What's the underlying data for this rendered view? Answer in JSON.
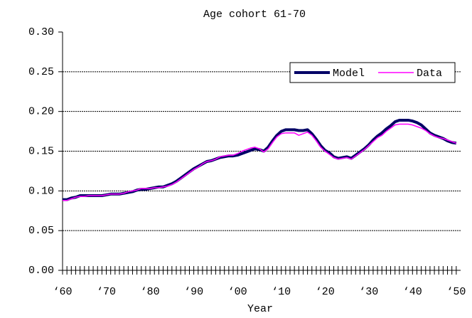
{
  "chart_data": {
    "type": "line",
    "title": "Age cohort 61-70",
    "x_label": "Year",
    "x": [
      1960,
      1961,
      1962,
      1963,
      1964,
      1965,
      1966,
      1967,
      1968,
      1969,
      1970,
      1971,
      1972,
      1973,
      1974,
      1975,
      1976,
      1977,
      1978,
      1979,
      1980,
      1981,
      1982,
      1983,
      1984,
      1985,
      1986,
      1987,
      1988,
      1989,
      1990,
      1991,
      1992,
      1993,
      1994,
      1995,
      1996,
      1997,
      1998,
      1999,
      2000,
      2001,
      2002,
      2003,
      2004,
      2005,
      2006,
      2007,
      2008,
      2009,
      2010,
      2011,
      2012,
      2013,
      2014,
      2015,
      2016,
      2017,
      2018,
      2019,
      2020,
      2021,
      2022,
      2023,
      2024,
      2025,
      2026,
      2027,
      2028,
      2029,
      2030,
      2031,
      2032,
      2033,
      2034,
      2035,
      2036,
      2037,
      2038,
      2039,
      2040,
      2041,
      2042,
      2043,
      2044,
      2045,
      2046,
      2047,
      2048,
      2049,
      2050
    ],
    "series": [
      {
        "name": "Model",
        "color": "#000066",
        "values": [
          0.089,
          0.089,
          0.091,
          0.092,
          0.094,
          0.094,
          0.094,
          0.094,
          0.094,
          0.094,
          0.095,
          0.096,
          0.096,
          0.096,
          0.097,
          0.098,
          0.099,
          0.101,
          0.102,
          0.102,
          0.103,
          0.104,
          0.105,
          0.105,
          0.107,
          0.109,
          0.112,
          0.116,
          0.12,
          0.124,
          0.128,
          0.131,
          0.134,
          0.137,
          0.138,
          0.14,
          0.142,
          0.143,
          0.144,
          0.144,
          0.145,
          0.147,
          0.149,
          0.151,
          0.153,
          0.152,
          0.15,
          0.155,
          0.163,
          0.17,
          0.175,
          0.177,
          0.177,
          0.177,
          0.176,
          0.176,
          0.177,
          0.172,
          0.165,
          0.157,
          0.151,
          0.148,
          0.143,
          0.141,
          0.142,
          0.143,
          0.141,
          0.145,
          0.149,
          0.153,
          0.158,
          0.164,
          0.169,
          0.173,
          0.178,
          0.182,
          0.187,
          0.189,
          0.189,
          0.189,
          0.188,
          0.186,
          0.183,
          0.178,
          0.173,
          0.17,
          0.168,
          0.166,
          0.163,
          0.161,
          0.16
        ]
      },
      {
        "name": "Data",
        "color": "#ff00ff",
        "values": [
          0.088,
          0.088,
          0.09,
          0.092,
          0.093,
          0.093,
          0.094,
          0.094,
          0.094,
          0.094,
          0.095,
          0.096,
          0.096,
          0.096,
          0.097,
          0.099,
          0.1,
          0.101,
          0.103,
          0.103,
          0.103,
          0.104,
          0.104,
          0.105,
          0.106,
          0.108,
          0.111,
          0.115,
          0.119,
          0.123,
          0.127,
          0.13,
          0.134,
          0.137,
          0.138,
          0.14,
          0.143,
          0.144,
          0.145,
          0.145,
          0.147,
          0.15,
          0.152,
          0.154,
          0.155,
          0.153,
          0.149,
          0.153,
          0.161,
          0.168,
          0.172,
          0.173,
          0.173,
          0.173,
          0.17,
          0.172,
          0.174,
          0.17,
          0.163,
          0.155,
          0.15,
          0.146,
          0.142,
          0.14,
          0.141,
          0.142,
          0.14,
          0.144,
          0.148,
          0.152,
          0.157,
          0.162,
          0.167,
          0.17,
          0.175,
          0.179,
          0.183,
          0.184,
          0.184,
          0.184,
          0.183,
          0.181,
          0.179,
          0.176,
          0.172,
          0.169,
          0.167,
          0.166,
          0.164,
          0.162,
          0.16
        ]
      }
    ],
    "xlim": [
      1960,
      2051
    ],
    "xticks": [
      {
        "value": 1960,
        "label": "‘60"
      },
      {
        "value": 1970,
        "label": "‘70"
      },
      {
        "value": 1980,
        "label": "‘80"
      },
      {
        "value": 1990,
        "label": "‘90"
      },
      {
        "value": 2000,
        "label": "‘00"
      },
      {
        "value": 2010,
        "label": "‘10"
      },
      {
        "value": 2020,
        "label": "‘20"
      },
      {
        "value": 2030,
        "label": "‘30"
      },
      {
        "value": 2040,
        "label": "‘40"
      },
      {
        "value": 2050,
        "label": "‘50"
      }
    ],
    "ylim": [
      0,
      0.3
    ],
    "yticks": [
      {
        "value": 0,
        "label": "0.00"
      },
      {
        "value": 0.05,
        "label": "0.05"
      },
      {
        "value": 0.1,
        "label": "0.10"
      },
      {
        "value": 0.15,
        "label": "0.15"
      },
      {
        "value": 0.2,
        "label": "0.20"
      },
      {
        "value": 0.25,
        "label": "0.25"
      },
      {
        "value": 0.3,
        "label": "0.30"
      }
    ],
    "grid": true,
    "legend": "upper right"
  }
}
